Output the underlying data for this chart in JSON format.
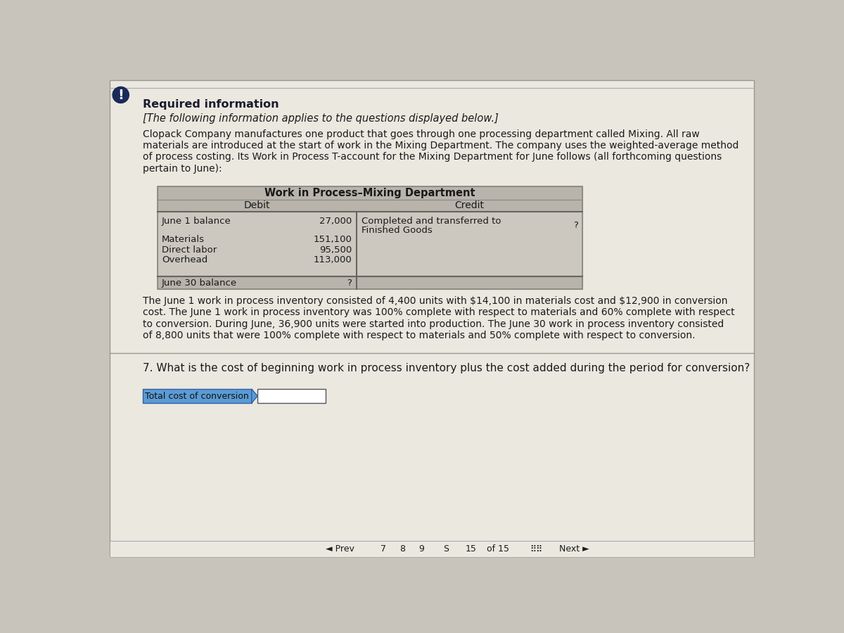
{
  "bg_color": "#c8c4bc",
  "page_bg": "#ebe8e0",
  "title": "Required information",
  "subtitle": "[The following information applies to the questions displayed below.]",
  "paragraph1_lines": [
    "Clopack Company manufactures one product that goes through one processing department called Mixing. All raw",
    "materials are introduced at the start of work in the Mixing Department. The company uses the weighted-average method",
    "of process costing. Its Work in Process T-account for the Mixing Department for June follows (all forthcoming questions",
    "pertain to June):"
  ],
  "t_account_title": "Work in Process–Mixing Department",
  "debit_label": "Debit",
  "credit_label": "Credit",
  "paragraph2_lines": [
    "The June 1 work in process inventory consisted of 4,400 units with $14,100 in materials cost and $12,900 in conversion",
    "cost. The June 1 work in process inventory was 100% complete with respect to materials and 60% complete with respect",
    "to conversion. During June, 36,900 units were started into production. The June 30 work in process inventory consisted",
    "of 8,800 units that were 100% complete with respect to materials and 50% complete with respect to conversion."
  ],
  "question_text": "7. What is the cost of beginning work in process inventory plus the cost added during the period for conversion?",
  "answer_label": "Total cost of conversion",
  "answer_label_bg": "#5b9bd5",
  "answer_box_bg": "#ffffff",
  "excl_circle_color": "#1a2a5a",
  "table_header_bg": "#b8b4ac",
  "table_row_bg": "#ccc8c0",
  "table_footer_bg": "#b8b4ac",
  "table_border_color": "#888880",
  "divider_color": "#666660"
}
